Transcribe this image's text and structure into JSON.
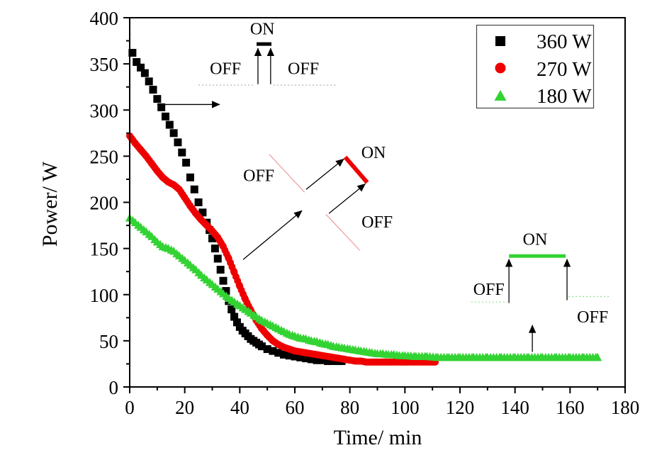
{
  "figure": {
    "background": "#ffffff",
    "frame_color": "#000000"
  },
  "chart_data": {
    "type": "scatter",
    "title": "",
    "xlabel": "Time/ min",
    "ylabel": "Power/ W",
    "xlim": [
      0,
      180
    ],
    "ylim": [
      0,
      400
    ],
    "x_major_ticks": [
      0,
      20,
      40,
      60,
      80,
      100,
      120,
      140,
      160,
      180
    ],
    "y_major_ticks": [
      0,
      50,
      100,
      150,
      200,
      250,
      300,
      350,
      400
    ],
    "x_minor_step": 10,
    "y_minor_step": 25,
    "grid": false,
    "legend_position": "top-right",
    "series": [
      {
        "name": "360 W",
        "marker": "square",
        "color": "#000000",
        "points": [
          [
            1,
            362
          ],
          [
            2.5,
            352
          ],
          [
            4,
            346
          ],
          [
            5.5,
            340
          ],
          [
            7,
            331
          ],
          [
            8.5,
            322
          ],
          [
            10,
            312
          ],
          [
            11.5,
            303
          ],
          [
            13,
            293
          ],
          [
            14.5,
            284
          ],
          [
            16,
            275
          ],
          [
            17.5,
            265
          ],
          [
            19,
            254
          ],
          [
            20.5,
            243
          ],
          [
            22,
            227
          ],
          [
            23.5,
            214
          ],
          [
            25,
            200
          ],
          [
            26.5,
            189
          ],
          [
            28,
            178
          ],
          [
            29,
            170
          ],
          [
            30,
            161
          ],
          [
            31,
            150
          ],
          [
            32,
            139
          ],
          [
            33,
            127
          ],
          [
            34,
            115
          ],
          [
            35,
            104
          ],
          [
            36,
            93
          ],
          [
            37,
            84
          ],
          [
            38,
            76
          ],
          [
            39,
            70
          ],
          [
            40,
            65
          ],
          [
            41,
            61
          ],
          [
            42,
            58
          ],
          [
            43,
            55
          ],
          [
            44,
            52
          ],
          [
            45,
            50
          ],
          [
            46,
            48
          ],
          [
            47,
            46
          ],
          [
            48,
            44
          ],
          [
            50,
            41
          ],
          [
            52,
            39
          ],
          [
            54,
            37
          ],
          [
            56,
            35
          ],
          [
            58,
            34
          ],
          [
            60,
            33
          ],
          [
            62,
            32
          ],
          [
            64,
            31
          ],
          [
            66,
            30
          ],
          [
            68,
            29
          ],
          [
            70,
            29
          ],
          [
            72,
            28
          ],
          [
            74,
            28
          ],
          [
            76,
            28
          ],
          [
            77,
            28
          ]
        ]
      },
      {
        "name": "270 W",
        "marker": "circle",
        "color": "#ee0000",
        "render_step": 0.6,
        "points": [
          [
            0,
            272
          ],
          [
            2,
            264
          ],
          [
            4,
            257
          ],
          [
            6,
            250
          ],
          [
            8,
            242
          ],
          [
            10,
            234
          ],
          [
            12,
            227
          ],
          [
            14,
            222
          ],
          [
            16,
            219
          ],
          [
            18,
            214
          ],
          [
            20,
            205
          ],
          [
            22,
            196
          ],
          [
            24,
            188
          ],
          [
            26,
            181
          ],
          [
            28,
            175
          ],
          [
            30,
            169
          ],
          [
            32,
            162
          ],
          [
            34,
            152
          ],
          [
            36,
            139
          ],
          [
            38,
            124
          ],
          [
            40,
            109
          ],
          [
            42,
            95
          ],
          [
            44,
            83
          ],
          [
            46,
            72
          ],
          [
            48,
            63
          ],
          [
            50,
            56
          ],
          [
            52,
            50
          ],
          [
            54,
            46
          ],
          [
            56,
            43
          ],
          [
            58,
            41
          ],
          [
            60,
            39
          ],
          [
            62,
            38
          ],
          [
            64,
            37
          ],
          [
            66,
            36
          ],
          [
            68,
            35
          ],
          [
            70,
            34
          ],
          [
            72,
            33
          ],
          [
            74,
            32
          ],
          [
            76,
            31
          ],
          [
            78,
            30
          ],
          [
            80,
            29
          ],
          [
            82,
            28
          ],
          [
            84,
            28
          ],
          [
            86,
            27
          ],
          [
            88,
            27
          ],
          [
            90,
            27
          ],
          [
            95,
            27
          ],
          [
            100,
            27
          ],
          [
            105,
            27
          ],
          [
            110,
            27
          ],
          [
            111,
            27
          ]
        ]
      },
      {
        "name": "180 W",
        "marker": "triangle",
        "color": "#33d333",
        "render_step": 1.1,
        "points": [
          [
            0,
            183
          ],
          [
            2,
            178
          ],
          [
            4,
            173
          ],
          [
            6,
            168
          ],
          [
            8,
            163
          ],
          [
            10,
            157
          ],
          [
            12,
            152
          ],
          [
            14,
            150
          ],
          [
            16,
            147
          ],
          [
            18,
            142
          ],
          [
            20,
            137
          ],
          [
            22,
            132
          ],
          [
            24,
            127
          ],
          [
            26,
            121
          ],
          [
            28,
            116
          ],
          [
            30,
            111
          ],
          [
            32,
            106
          ],
          [
            34,
            101
          ],
          [
            36,
            96
          ],
          [
            38,
            92
          ],
          [
            40,
            88
          ],
          [
            42,
            84
          ],
          [
            44,
            80
          ],
          [
            46,
            76
          ],
          [
            48,
            72
          ],
          [
            50,
            69
          ],
          [
            52,
            66
          ],
          [
            54,
            63
          ],
          [
            56,
            60
          ],
          [
            58,
            57
          ],
          [
            60,
            55
          ],
          [
            62,
            53
          ],
          [
            64,
            52
          ],
          [
            66,
            50
          ],
          [
            68,
            49
          ],
          [
            70,
            47
          ],
          [
            72,
            46
          ],
          [
            74,
            44
          ],
          [
            76,
            43
          ],
          [
            78,
            42
          ],
          [
            80,
            41
          ],
          [
            82,
            40
          ],
          [
            84,
            39
          ],
          [
            86,
            38
          ],
          [
            88,
            37
          ],
          [
            90,
            36
          ],
          [
            92,
            36
          ],
          [
            94,
            35
          ],
          [
            96,
            35
          ],
          [
            98,
            34
          ],
          [
            100,
            34
          ],
          [
            104,
            33
          ],
          [
            108,
            33
          ],
          [
            112,
            32
          ],
          [
            116,
            32
          ],
          [
            120,
            32
          ],
          [
            125,
            32
          ],
          [
            130,
            32
          ],
          [
            135,
            32
          ],
          [
            140,
            32
          ],
          [
            145,
            32
          ],
          [
            150,
            32
          ],
          [
            155,
            32
          ],
          [
            160,
            32
          ],
          [
            165,
            32
          ],
          [
            170,
            32
          ]
        ]
      }
    ]
  },
  "annotations": [
    {
      "series": "360 W",
      "color": "#000000",
      "on_label": {
        "text": "ON",
        "t": 48.2,
        "p": 388
      },
      "on_segment": {
        "t1": 46.1,
        "p1": 371.5,
        "t2": 51.5,
        "p2": 371.5,
        "width": 5
      },
      "off_labels": [
        {
          "text": "OFF",
          "t": 34.8,
          "p": 345
        },
        {
          "text": "OFF",
          "t": 63.1,
          "p": 345
        }
      ],
      "off_lines": [
        {
          "t1": 25.0,
          "p1": 327,
          "t2": 45.3,
          "p2": 327,
          "style": "dotted",
          "color": "#a8a8a8"
        },
        {
          "t1": 52.3,
          "p1": 327,
          "t2": 74.9,
          "p2": 327,
          "style": "dotted",
          "color": "#a8a8a8"
        }
      ],
      "arrows": [
        {
          "t1": 46.6,
          "p1": 328,
          "t2": 46.6,
          "p2": 367
        },
        {
          "t1": 51.2,
          "p1": 328,
          "t2": 51.2,
          "p2": 367
        },
        {
          "t1": 10.0,
          "p1": 306,
          "t2": 32.7,
          "p2": 306
        }
      ]
    },
    {
      "series": "270 W",
      "color": "#ee0000",
      "on_label": {
        "text": "ON",
        "t": 88.6,
        "p": 254
      },
      "on_segment": {
        "t1": 78.3,
        "p1": 249,
        "t2": 86.3,
        "p2": 221.5,
        "width": 6
      },
      "off_labels": [
        {
          "text": "OFF",
          "t": 46.9,
          "p": 229
        },
        {
          "text": "OFF",
          "t": 89.9,
          "p": 179
        }
      ],
      "off_lines": [
        {
          "t1": 50.7,
          "p1": 252,
          "t2": 63.5,
          "p2": 211,
          "style": "solid",
          "color": "#f09a9a"
        },
        {
          "t1": 71.3,
          "p1": 187,
          "t2": 83.6,
          "p2": 148,
          "style": "solid",
          "color": "#f09a9a"
        }
      ],
      "arrows": [
        {
          "t1": 41.2,
          "p1": 138,
          "t2": 62.6,
          "p2": 191
        },
        {
          "t1": 64.1,
          "p1": 214,
          "t2": 77.8,
          "p2": 247
        },
        {
          "t1": 72.4,
          "p1": 188,
          "t2": 85.6,
          "p2": 220
        }
      ]
    },
    {
      "series": "180 W",
      "color": "#33d333",
      "on_label": {
        "text": "ON",
        "t": 147.3,
        "p": 160
      },
      "on_segment": {
        "t1": 137.8,
        "p1": 141.8,
        "t2": 158.4,
        "p2": 141.8,
        "width": 5
      },
      "off_labels": [
        {
          "text": "OFF",
          "t": 130.5,
          "p": 106
        },
        {
          "text": "OFF",
          "t": 168.2,
          "p": 76
        }
      ],
      "off_lines": [
        {
          "t1": 124.1,
          "p1": 92,
          "t2": 137.2,
          "p2": 92,
          "style": "dotted",
          "color": "#8fe08f"
        },
        {
          "t1": 159.4,
          "p1": 98,
          "t2": 174.3,
          "p2": 98,
          "style": "dotted",
          "color": "#8fe08f"
        }
      ],
      "arrows": [
        {
          "t1": 137.8,
          "p1": 91,
          "t2": 137.8,
          "p2": 138.5
        },
        {
          "t1": 158.9,
          "p1": 94,
          "t2": 158.9,
          "p2": 138.5
        },
        {
          "t1": 146.3,
          "p1": 38,
          "t2": 146.3,
          "p2": 67
        }
      ]
    }
  ]
}
